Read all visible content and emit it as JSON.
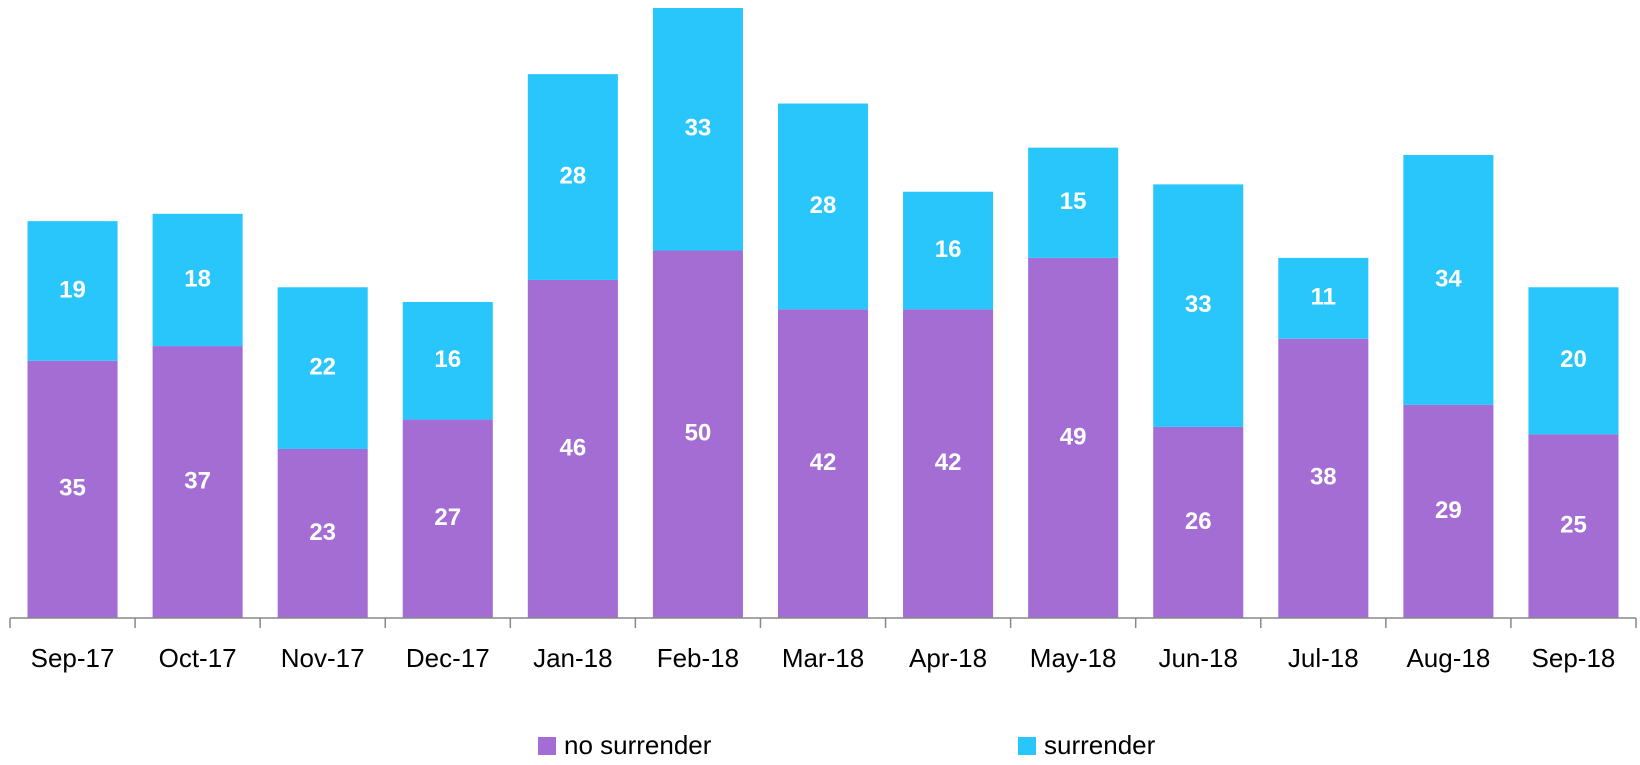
{
  "chart_data": {
    "type": "stacked_bar",
    "categories": [
      "Sep-17",
      "Oct-17",
      "Nov-17",
      "Dec-17",
      "Jan-18",
      "Feb-18",
      "Mar-18",
      "Apr-18",
      "May-18",
      "Jun-18",
      "Jul-18",
      "Aug-18",
      "Sep-18"
    ],
    "series": [
      {
        "name": "no surrender",
        "color": "#a36dd4",
        "values": [
          35,
          37,
          23,
          27,
          46,
          50,
          42,
          42,
          49,
          26,
          38,
          29,
          25
        ]
      },
      {
        "name": "surrender",
        "color": "#29c6fc",
        "values": [
          19,
          18,
          22,
          16,
          28,
          33,
          28,
          16,
          15,
          33,
          11,
          34,
          20
        ]
      }
    ]
  }
}
